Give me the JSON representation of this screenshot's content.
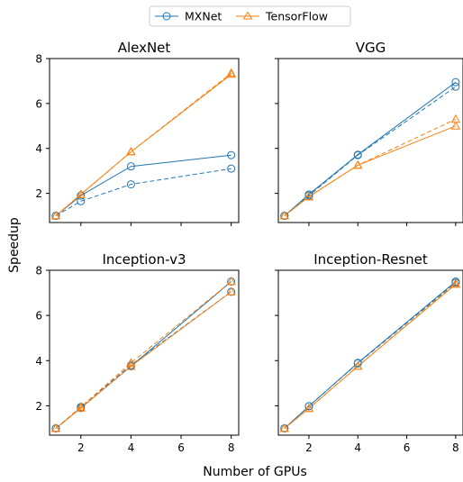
{
  "figure": {
    "ylabel": "Speedup",
    "xlabel": "Number of GPUs"
  },
  "legend": {
    "placement": "top-center",
    "entries": [
      {
        "label": "MXNet",
        "color": "#1f77b4",
        "marker": "circle"
      },
      {
        "label": "TensorFlow",
        "color": "#ff7f0e",
        "marker": "triangle"
      }
    ]
  },
  "chart_data": [
    {
      "type": "line",
      "title": "AlexNet",
      "x": [
        1,
        2,
        4,
        8
      ],
      "xticks": [
        "2",
        "4",
        "6",
        "8"
      ],
      "xlim": [
        0.75,
        8.3
      ],
      "ylim": [
        0.7,
        8.0
      ],
      "yticks": [
        "2",
        "4",
        "6",
        "8"
      ],
      "show_yticklabels": true,
      "show_xticklabels": false,
      "series": [
        {
          "name": "MXNet",
          "style": "solid",
          "values": [
            1.0,
            1.9,
            3.2,
            3.7
          ]
        },
        {
          "name": "MXNet",
          "style": "dashed",
          "values": [
            1.0,
            1.65,
            2.4,
            3.1
          ]
        },
        {
          "name": "TensorFlow",
          "style": "solid",
          "values": [
            1.0,
            1.95,
            3.85,
            7.3
          ]
        },
        {
          "name": "TensorFlow",
          "style": "dashed",
          "values": [
            1.0,
            1.95,
            3.85,
            7.35
          ]
        }
      ]
    },
    {
      "type": "line",
      "title": "VGG",
      "x": [
        1,
        2,
        4,
        8
      ],
      "xticks": [
        "2",
        "4",
        "6",
        "8"
      ],
      "xlim": [
        0.75,
        8.3
      ],
      "ylim": [
        0.7,
        8.0
      ],
      "yticks": [
        "2",
        "4",
        "6",
        "8"
      ],
      "show_yticklabels": false,
      "show_xticklabels": false,
      "series": [
        {
          "name": "MXNet",
          "style": "solid",
          "values": [
            1.0,
            1.95,
            3.72,
            6.95
          ]
        },
        {
          "name": "MXNet",
          "style": "dashed",
          "values": [
            1.0,
            1.9,
            3.7,
            6.75
          ]
        },
        {
          "name": "TensorFlow",
          "style": "solid",
          "values": [
            1.0,
            1.85,
            3.25,
            5.0
          ]
        },
        {
          "name": "TensorFlow",
          "style": "dashed",
          "values": [
            1.0,
            1.85,
            3.25,
            5.3
          ]
        }
      ]
    },
    {
      "type": "line",
      "title": "Inception-v3",
      "x": [
        1,
        2,
        4,
        8
      ],
      "xticks": [
        "2",
        "4",
        "6",
        "8"
      ],
      "xlim": [
        0.75,
        8.3
      ],
      "ylim": [
        0.7,
        8.0
      ],
      "yticks": [
        "2",
        "4",
        "6",
        "8"
      ],
      "show_yticklabels": true,
      "show_xticklabels": true,
      "series": [
        {
          "name": "MXNet",
          "style": "solid",
          "values": [
            1.0,
            1.9,
            3.75,
            7.5
          ]
        },
        {
          "name": "MXNet",
          "style": "dashed",
          "values": [
            1.0,
            1.95,
            3.8,
            7.05
          ]
        },
        {
          "name": "TensorFlow",
          "style": "solid",
          "values": [
            1.0,
            1.9,
            3.75,
            7.05
          ]
        },
        {
          "name": "TensorFlow",
          "style": "dashed",
          "values": [
            1.0,
            1.95,
            3.9,
            7.5
          ]
        }
      ]
    },
    {
      "type": "line",
      "title": "Inception-Resnet",
      "x": [
        1,
        2,
        4,
        8
      ],
      "xticks": [
        "2",
        "4",
        "6",
        "8"
      ],
      "xlim": [
        0.75,
        8.3
      ],
      "ylim": [
        0.7,
        8.0
      ],
      "yticks": [
        "2",
        "4",
        "6",
        "8"
      ],
      "show_yticklabels": false,
      "show_xticklabels": true,
      "series": [
        {
          "name": "MXNet",
          "style": "solid",
          "values": [
            1.0,
            1.98,
            3.9,
            7.5
          ]
        },
        {
          "name": "MXNet",
          "style": "dashed",
          "values": [
            1.0,
            1.98,
            3.88,
            7.45
          ]
        },
        {
          "name": "TensorFlow",
          "style": "solid",
          "values": [
            1.0,
            1.88,
            3.75,
            7.38
          ]
        },
        {
          "name": "TensorFlow",
          "style": "dashed",
          "values": [
            1.0,
            1.88,
            3.75,
            7.42
          ]
        }
      ]
    }
  ]
}
